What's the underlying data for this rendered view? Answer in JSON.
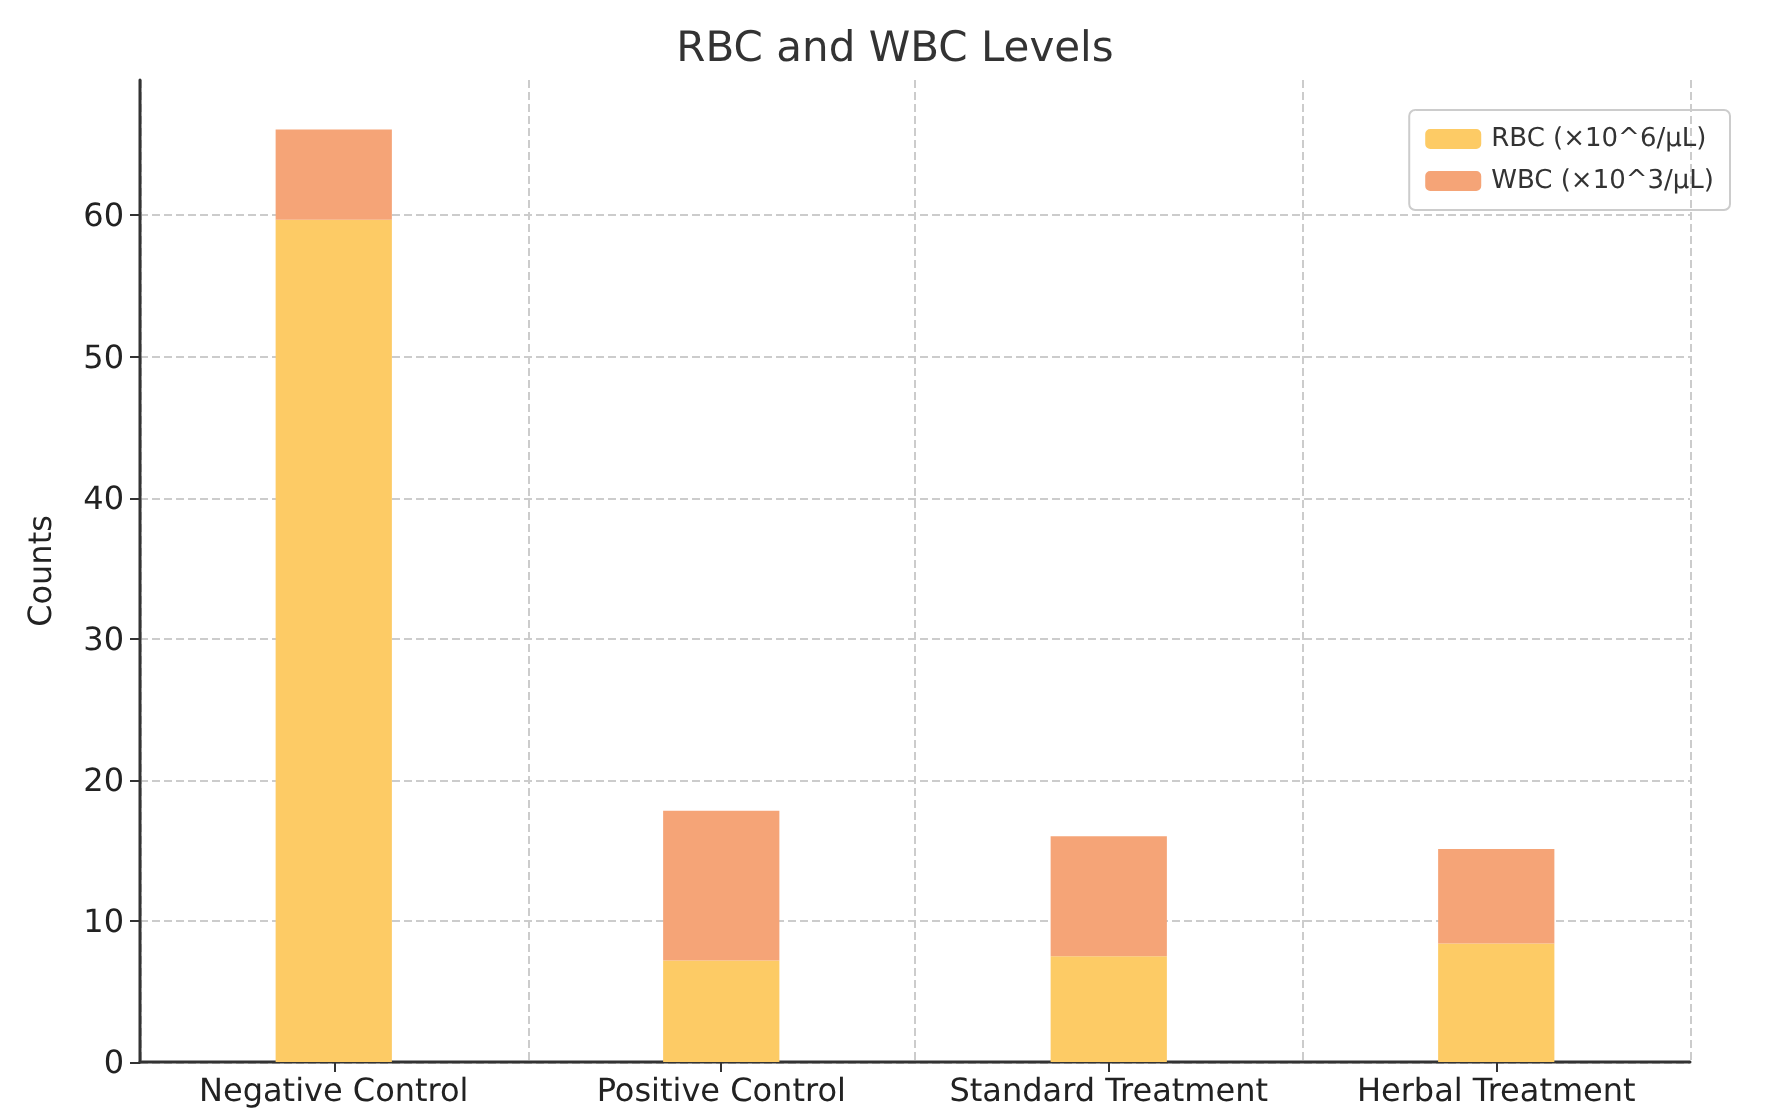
{
  "chart_data": {
    "type": "bar",
    "title": "RBC and WBC Levels",
    "ylabel": "Counts",
    "categories": [
      "Negative Control",
      "Positive Control",
      "Standard Treatment",
      "Herbal Treatment"
    ],
    "series": [
      {
        "name": "RBC (×10^6/μL)",
        "color": "#fdcb65",
        "values": [
          59.7,
          7.2,
          7.5,
          8.4
        ]
      },
      {
        "name": "WBC (×10^3/μL)",
        "color": "#f5a477",
        "values": [
          6.4,
          10.6,
          8.5,
          6.7
        ]
      }
    ],
    "stacked": true,
    "ylim": [
      0,
      69.6
    ],
    "yticks": [
      0,
      10,
      20,
      30,
      40,
      50,
      60
    ],
    "grid": true,
    "legend": "top right"
  }
}
